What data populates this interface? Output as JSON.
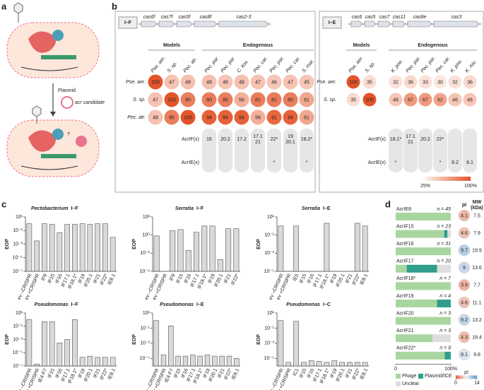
{
  "panel_a": {
    "label": "a",
    "plasmid": "Plasmid",
    "candidate": "acr candidate",
    "question": "?"
  },
  "panel_b": {
    "label": "b",
    "blocks": [
      {
        "type_label": "I–F",
        "genes": [
          "cas6f",
          "cas7f",
          "cas5f",
          "cas8f",
          "cas2-3"
        ],
        "models_label": "Models",
        "endogenous_label": "Endogenous",
        "model_columns": [
          "Pse. aer.",
          "S. sp.",
          "Pec. atr."
        ],
        "endogenous_columns": [
          "Pec. par",
          "Pec. par",
          "C. kos",
          "Pec. car.",
          "Pec. par.",
          "Pec. car.",
          "S. mar."
        ],
        "rows": [
          {
            "name": "Pse. aer.",
            "values": [
              100,
              47,
              48,
              48,
              46,
              48,
              47,
              46,
              47,
              45
            ]
          },
          {
            "name": "S. sp.",
            "values": [
              47,
              100,
              80,
              80,
              80,
              56,
              81,
              81,
              80,
              61
            ]
          },
          {
            "name": "Pec. atr.",
            "values": [
              48,
              80,
              100,
              94,
              94,
              94,
              56,
              91,
              94,
              61
            ]
          }
        ],
        "acr_rows": [
          {
            "name": "AcrIF(x)",
            "cells": [
              "16",
              "20.2",
              "17.2",
              [
                "17.1",
                "21"
              ],
              "22*",
              [
                "19",
                "20.1"
              ],
              "18.2*"
            ]
          },
          {
            "name": "AcrIE(x)",
            "cells": [
              null,
              null,
              null,
              null,
              "*",
              null,
              "*"
            ]
          }
        ]
      },
      {
        "type_label": "I–E",
        "genes": [
          "cas6",
          "cas5",
          "cas7",
          "cas11",
          "cas8e",
          "cas3"
        ],
        "models_label": "Models",
        "endogenous_label": "Endogenous",
        "model_columns": [
          "Pse. aer.",
          "S. sp."
        ],
        "endogenous_columns": [
          "K. pne.",
          "Pec. par.",
          "Pec. par.",
          "Pec. car.",
          "K. pne.",
          "K. mic."
        ],
        "rows": [
          {
            "name": "Pse. aer.",
            "values": [
              100,
              35,
              32,
              36,
              33,
              30,
              32,
              36
            ]
          },
          {
            "name": "S. sp.",
            "values": [
              35,
              100,
              46,
              67,
              67,
              62,
              46,
              46
            ]
          }
        ],
        "acr_rows": [
          {
            "name": "AcrIF(x)",
            "cells": [
              "18.1*",
              [
                "17.1",
                "21"
              ],
              "20.2",
              "22*",
              null,
              null
            ]
          },
          {
            "name": "AcrIE(x)",
            "cells": [
              "*",
              null,
              null,
              "*",
              "8.2",
              "8.1"
            ]
          }
        ]
      }
    ],
    "scale": {
      "min": {
        "value": 25,
        "label": "25%"
      },
      "max": {
        "value": 100,
        "label": "100%"
      },
      "colors": [
        "#fdf1eb",
        "#e4542a"
      ]
    }
  },
  "panel_c": {
    "label": "c"
  },
  "panel_d": {
    "label": "d"
  },
  "chart_data": [
    {
      "type": "bar",
      "title_genus": "Pectobacterium",
      "title_system": "I–F",
      "ylabel": "EOP",
      "log_scale": true,
      "color": "#d9d9d9",
      "categories": [
        "ev –CRISPR",
        "ev +CRISPR",
        "IF9",
        "IF15",
        "IF16",
        "IF17.1",
        "IF18.1*",
        "IF19",
        "IF20.1",
        "IF21",
        "IF22*",
        "IE8.1"
      ],
      "values": [
        1,
        0.003,
        1,
        0.8,
        0.05,
        0.8,
        0.8,
        1,
        0.8,
        1,
        1,
        0.01
      ],
      "ylim": [
        1e-07,
        10
      ],
      "yticks": [
        {
          "value": 10,
          "label": "10¹"
        },
        {
          "value": 0.1,
          "label": "10⁻¹"
        },
        {
          "value": 0.001,
          "label": "10⁻³"
        },
        {
          "value": 1e-05,
          "label": "10⁻⁵"
        },
        {
          "value": 1e-07,
          "label": "10⁻⁷"
        }
      ]
    },
    {
      "type": "bar",
      "title_genus": "Serratia",
      "title_system": "I–F",
      "ylabel": "EOP",
      "log_scale": true,
      "color": "#d9d9d9",
      "categories": [
        "ev –CRISPR",
        "ev +CRISPR",
        "IF9",
        "IF15",
        "IF16",
        "IF17.1",
        "IF18.1*",
        "IF19",
        "IF20.1",
        "IF21",
        "IF22*"
      ],
      "values": [
        0.8,
        null,
        3,
        4,
        0.02,
        2,
        10,
        10,
        0.002,
        5,
        5
      ],
      "ylim": [
        0.0001,
        100
      ],
      "yticks": [
        {
          "value": 100,
          "label": "10²"
        },
        {
          "value": 1,
          "label": "10⁰"
        },
        {
          "value": 0.01,
          "label": "10⁻²"
        },
        {
          "value": 0.0001,
          "label": "10⁻⁴"
        }
      ]
    },
    {
      "type": "bar",
      "title_genus": "Serratia",
      "title_system": "I–E",
      "ylabel": "EOP",
      "log_scale": true,
      "color": "#d9d9d9",
      "categories": [
        "ev –CRISPR",
        "ev +CRISPR",
        "IE5",
        "IF15",
        "IF16",
        "IF17.1",
        "IF18.1*",
        "IF19",
        "IF20.1",
        "IF21",
        "IF22*",
        "IE8.1"
      ],
      "values": [
        1,
        null,
        1,
        null,
        null,
        null,
        2,
        null,
        null,
        null,
        2,
        1
      ],
      "ylim": [
        1e-05,
        10
      ],
      "yticks": [
        {
          "value": 10,
          "label": "10¹"
        },
        {
          "value": 0.1,
          "label": "10⁻¹"
        },
        {
          "value": 0.001,
          "label": "10⁻³"
        },
        {
          "value": 1e-05,
          "label": "10⁻⁵"
        }
      ]
    },
    {
      "type": "bar",
      "title_genus": "Pseudomonas",
      "title_system": "I–F",
      "ylabel": "EOP",
      "log_scale": true,
      "color": "#d9d9d9",
      "categories": [
        "ev –CRISPR",
        "ev +CRISPR",
        "IE4-F7",
        "IF15",
        "IF16",
        "IF17.1",
        "IF18.1*",
        "IF19",
        "IF20.1",
        "IF21",
        "IF22*",
        "IE8.1"
      ],
      "values": [
        1,
        2e-07,
        0.5,
        0.5,
        0.0003,
        0.001,
        1,
        2e-06,
        3e-06,
        2e-06,
        2e-06,
        2e-06
      ],
      "ylim": [
        1e-07,
        10
      ],
      "yticks": [
        {
          "value": 10,
          "label": "10¹"
        },
        {
          "value": 0.1,
          "label": "10⁻¹"
        },
        {
          "value": 0.001,
          "label": "10⁻³"
        },
        {
          "value": 1e-05,
          "label": "10⁻⁵"
        },
        {
          "value": 1e-07,
          "label": "10⁻⁷"
        }
      ]
    },
    {
      "type": "bar",
      "title_genus": "Pseudomonas",
      "title_system": "I–E",
      "ylabel": "EOP",
      "log_scale": true,
      "color": "#d9d9d9",
      "categories": [
        "ev –CRISPR",
        "ev +CRISPR",
        "IE4-F7",
        "IF15",
        "IF16",
        "IF17.1",
        "IF18.1*",
        "IF19",
        "IF20.1",
        "IF21",
        "IF22*",
        "IE8.1"
      ],
      "values": [
        1,
        3e-05,
        0.2,
        2e-05,
        2e-05,
        3e-05,
        2e-05,
        3e-05,
        2e-05,
        2e-05,
        2e-05,
        1e-05
      ],
      "ylim": [
        1e-06,
        10
      ],
      "yticks": [
        {
          "value": 10,
          "label": "10¹"
        },
        {
          "value": 0.1,
          "label": "10⁻¹"
        },
        {
          "value": 0.001,
          "label": "10⁻³"
        },
        {
          "value": 1e-05,
          "label": "10⁻⁵"
        }
      ]
    },
    {
      "type": "bar",
      "title_genus": "Pseudomonas",
      "title_system": "I–C",
      "ylabel": "EOP",
      "log_scale": true,
      "color": "#d9d9d9",
      "categories": [
        "ev –CRISPR",
        "ev +CRISPR",
        "IC1",
        "IF15",
        "IF16",
        "IF17.1",
        "IF18.1*",
        "IF19",
        "IF20.1",
        "IF21",
        "IF22*",
        "IE8.1"
      ],
      "values": [
        1,
        3e-06,
        0.8,
        3e-06,
        5e-06,
        4e-06,
        3e-06,
        5e-06,
        3e-06,
        3e-06,
        3e-06,
        3e-06
      ],
      "ylim": [
        1e-06,
        10
      ],
      "yticks": [
        {
          "value": 10,
          "label": "10¹"
        },
        {
          "value": 0.1,
          "label": "10⁻¹"
        },
        {
          "value": 0.001,
          "label": "10⁻³"
        },
        {
          "value": 1e-05,
          "label": "10⁻⁵"
        }
      ]
    },
    {
      "type": "stacked_bar",
      "categories": [
        "AcrIE8",
        "AcrIF15",
        "AcrIF16",
        "AcrIF17",
        "AcrIF18*",
        "AcrIF19",
        "AcrIF20",
        "AcrIF21",
        "AcrIF22*"
      ],
      "n_labels": [
        "n = 45",
        "n = 23",
        "n = 31",
        "n = 20",
        "n = 7",
        "n = 4",
        "n = 3",
        "n = 3",
        "n = 9"
      ],
      "series": [
        {
          "name": "Phage",
          "color": "#a9d6a0",
          "values": [
            100,
            88,
            100,
            20,
            100,
            75,
            100,
            67,
            89
          ]
        },
        {
          "name": "Plasmid/ICE",
          "color": "#2f9e8c",
          "values": [
            0,
            6,
            0,
            55,
            0,
            25,
            0,
            0,
            11
          ]
        },
        {
          "name": "Unclear",
          "color": "#dedede",
          "values": [
            0,
            6,
            0,
            25,
            0,
            0,
            0,
            33,
            0
          ]
        }
      ],
      "xlim": [
        0,
        100
      ],
      "xticks": [
        0,
        {
          "value": 100,
          "label": "100%"
        }
      ],
      "pI": {
        "title": "pI",
        "values": [
          4.1,
          4.6,
          9.7,
          9,
          3.9,
          4.6,
          9.2,
          4.3,
          8.1
        ],
        "lim": [
          0,
          14
        ],
        "ticks": [
          0,
          14
        ],
        "colors": [
          "#e5603a",
          "#f4f4f4",
          "#5f92d2"
        ]
      },
      "mw": {
        "title_lines": [
          "MW",
          "(kDa)"
        ],
        "values": [
          7.5,
          7.9,
          19.9,
          13.6,
          7.7,
          11.1,
          13.2,
          18.4,
          9.8
        ]
      }
    }
  ]
}
